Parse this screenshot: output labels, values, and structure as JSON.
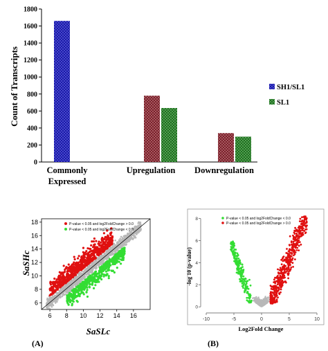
{
  "colors": {
    "blue": "#1a1aa8",
    "maroon": "#7a1f2a",
    "green": "#1f6e1f",
    "red": "#e01010",
    "lightgreen": "#33dd33",
    "gray": "#b8b8b8",
    "axis": "#000000"
  },
  "chart_data": [
    {
      "type": "bar",
      "ylabel": "Count of Transcripts",
      "xlabel": "",
      "ylim": [
        0,
        1800
      ],
      "yticks": [
        0,
        200,
        400,
        600,
        800,
        1000,
        1200,
        1400,
        1600,
        1800
      ],
      "categories": [
        "Commonly Expressed",
        "Upregulation",
        "Downregulation"
      ],
      "category_lines": [
        [
          "Commonly",
          "Expressed"
        ],
        [
          "Upregulation"
        ],
        [
          "Downregulation"
        ]
      ],
      "series": [
        {
          "name": "SH1/SL1",
          "values": [
            1660,
            null,
            null
          ],
          "color": "#1a1aa8"
        },
        {
          "name": "",
          "values": [
            null,
            780,
            340
          ],
          "color": "#7a1f2a"
        },
        {
          "name": "SL1",
          "values": [
            null,
            635,
            298
          ],
          "color": "#1f6e1f"
        }
      ],
      "legend": [
        "SH1/SL1",
        "SL1"
      ],
      "legend_position": "right"
    },
    {
      "type": "scatter",
      "panel_label": "(A)",
      "xlabel": "SaSLc",
      "ylabel": "SaSHc",
      "xlim": [
        5,
        18
      ],
      "ylim": [
        5,
        18.5
      ],
      "xticks": [
        6,
        8,
        10,
        12,
        14,
        16
      ],
      "yticks": [
        6,
        8,
        10,
        12,
        14,
        16,
        18
      ],
      "legend": [
        "P-value < 0.05 and log2FoldChange > 0.0",
        "P-value < 0.05 and log2FoldChange < 0.0"
      ],
      "legend_position": "top-left",
      "series": [
        {
          "name": "P-value < 0.05 and log2FoldChange > 0.0",
          "color": "#e01010",
          "region": "above diagonal",
          "x_range": [
            6,
            13.5
          ]
        },
        {
          "name": "P-value < 0.05 and log2FoldChange < 0.0",
          "color": "#33dd33",
          "region": "below diagonal",
          "x_range": [
            8,
            15
          ]
        },
        {
          "name": "not significant",
          "color": "#b8b8b8",
          "region": "diagonal",
          "x_range": [
            5.5,
            17
          ]
        }
      ],
      "reference_line": {
        "from": [
          5,
          5
        ],
        "to": [
          18,
          18.5
        ]
      }
    },
    {
      "type": "scatter",
      "panel_label": "(B)",
      "xlabel": "Log2Fold Change",
      "ylabel": "-log 10 (p-value)",
      "xlim": [
        -11,
        11
      ],
      "ylim": [
        -0.3,
        8.6
      ],
      "xticks": [
        -10,
        -5,
        0,
        5,
        10
      ],
      "yticks": [
        0,
        2,
        4,
        6,
        8
      ],
      "legend": [
        "P-value < 0.05 and log2FoldChange < 0.0",
        "P-value < 0.05 and log2FoldChange > 0.0"
      ],
      "legend_position": "top-left",
      "series": [
        {
          "name": "P-value < 0.05 and log2FoldChange < 0.0",
          "color": "#33dd33",
          "x_range": [
            -6,
            -2
          ]
        },
        {
          "name": "P-value < 0.05 and log2FoldChange > 0.0",
          "color": "#e01010",
          "x_range": [
            1.5,
            8.5
          ]
        },
        {
          "name": "not significant",
          "color": "#b8b8b8",
          "x_range": [
            -2,
            2
          ]
        }
      ]
    }
  ]
}
